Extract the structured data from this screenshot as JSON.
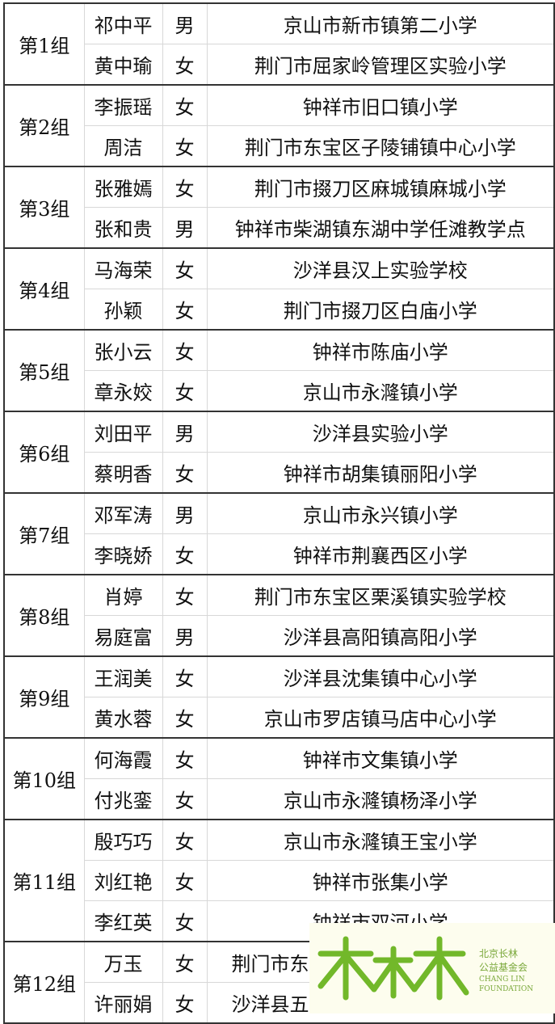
{
  "groups": [
    {
      "label": "第1组",
      "members": [
        {
          "name": "祁中平",
          "gender": "男",
          "school": "京山市新市镇第二小学"
        },
        {
          "name": "黄中瑜",
          "gender": "女",
          "school": "荆门市屈家岭管理区实验小学"
        }
      ]
    },
    {
      "label": "第2组",
      "members": [
        {
          "name": "李振瑶",
          "gender": "女",
          "school": "钟祥市旧口镇小学"
        },
        {
          "name": "周洁",
          "gender": "女",
          "school": "荆门市东宝区子陵铺镇中心小学"
        }
      ]
    },
    {
      "label": "第3组",
      "members": [
        {
          "name": "张雅嫣",
          "gender": "女",
          "school": "荆门市掇刀区麻城镇麻城小学"
        },
        {
          "name": "张和贵",
          "gender": "男",
          "school": "钟祥市柴湖镇东湖中学任滩教学点"
        }
      ]
    },
    {
      "label": "第4组",
      "members": [
        {
          "name": "马海荣",
          "gender": "女",
          "school": "沙洋县汉上实验学校"
        },
        {
          "name": "孙颖",
          "gender": "女",
          "school": "荆门市掇刀区白庙小学"
        }
      ]
    },
    {
      "label": "第5组",
      "members": [
        {
          "name": "张小云",
          "gender": "女",
          "school": "钟祥市陈庙小学"
        },
        {
          "name": "章永姣",
          "gender": "女",
          "school": "京山市永漋镇小学"
        }
      ]
    },
    {
      "label": "第6组",
      "members": [
        {
          "name": "刘田平",
          "gender": "男",
          "school": "沙洋县实验小学"
        },
        {
          "name": "蔡明香",
          "gender": "女",
          "school": "钟祥市胡集镇丽阳小学"
        }
      ]
    },
    {
      "label": "第7组",
      "members": [
        {
          "name": "邓军涛",
          "gender": "男",
          "school": "京山市永兴镇小学"
        },
        {
          "name": "李晓娇",
          "gender": "女",
          "school": "钟祥市荆襄西区小学"
        }
      ]
    },
    {
      "label": "第8组",
      "members": [
        {
          "name": "肖婷",
          "gender": "女",
          "school": "荆门市东宝区栗溪镇实验学校"
        },
        {
          "name": "易庭富",
          "gender": "男",
          "school": "沙洋县高阳镇高阳小学"
        }
      ]
    },
    {
      "label": "第9组",
      "members": [
        {
          "name": "王润美",
          "gender": "女",
          "school": "沙洋县沈集镇中心小学"
        },
        {
          "name": "黄水蓉",
          "gender": "女",
          "school": "京山市罗店镇马店中心小学"
        }
      ]
    },
    {
      "label": "第10组",
      "members": [
        {
          "name": "何海霞",
          "gender": "女",
          "school": "钟祥市文集镇小学"
        },
        {
          "name": "付兆銮",
          "gender": "女",
          "school": "京山市永漋镇杨泽小学"
        }
      ]
    },
    {
      "label": "第11组",
      "members": [
        {
          "name": "殷巧巧",
          "gender": "女",
          "school": "京山市永漋镇王宝小学"
        },
        {
          "name": "刘红艳",
          "gender": "女",
          "school": "钟祥市张集小学"
        },
        {
          "name": "李红英",
          "gender": "女",
          "school": "钟祥市双河小学"
        }
      ]
    },
    {
      "label": "第12组",
      "members": [
        {
          "name": "万玉",
          "gender": "女",
          "school": "荆门市东"
        },
        {
          "name": "许丽娟",
          "gender": "女",
          "school": "沙洋县五"
        }
      ]
    }
  ],
  "logo": {
    "cn_line1": "北京长林",
    "cn_line2": "公益基金会",
    "en_line1": "CHANG LIN",
    "en_line2": "FOUNDATION",
    "color": "#7ab829"
  }
}
